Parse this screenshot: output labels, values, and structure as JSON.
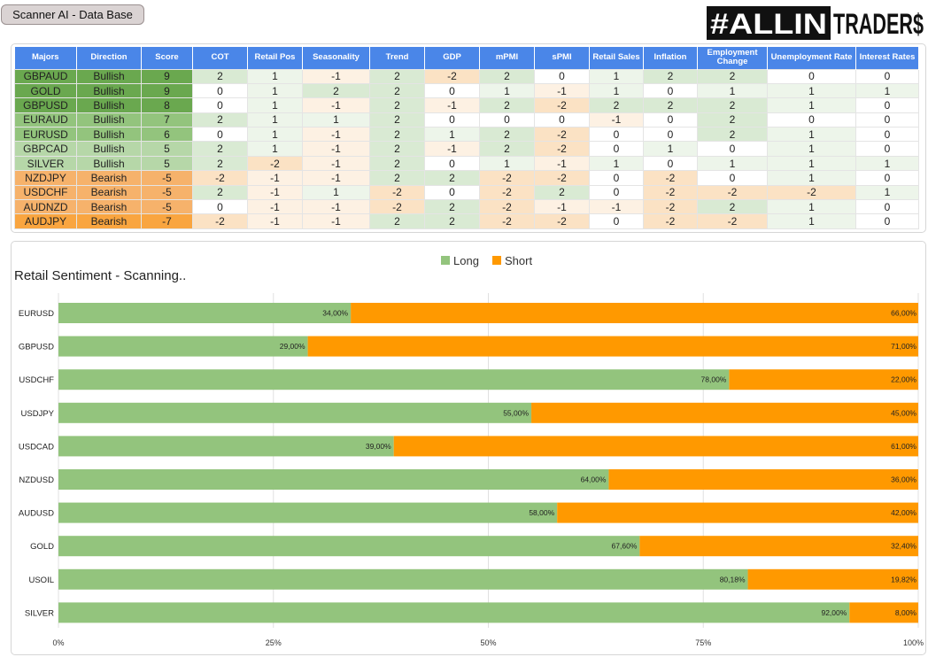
{
  "app": {
    "title": "Scanner AI - Data Base"
  },
  "logo": {
    "text": "#ALLINTRADER$"
  },
  "colors": {
    "header": "#4a86e8",
    "long": "#93c47d",
    "short": "#ff9900",
    "bullish_strong": "#6aa84f",
    "bullish_mid": "#93c47d",
    "bullish_light": "#b6d7a8",
    "bearish": "#f6b26b",
    "bearish_strong": "#f9a540",
    "pos2": "#d9ead3",
    "pos1": "#edf5ea",
    "neg1": "#fdf1e3",
    "neg2": "#fbe2c4"
  },
  "table": {
    "headers": [
      "Majors",
      "Direction",
      "Score",
      "COT",
      "Retail Pos",
      "Seasonality",
      "Trend",
      "GDP",
      "mPMI",
      "sPMI",
      "Retail Sales",
      "Inflation",
      "Employment Change",
      "Unemployment Rate",
      "Interest Rates"
    ],
    "rows": [
      [
        "GBPAUD",
        "Bullish",
        "9",
        "2",
        "1",
        "-1",
        "2",
        "-2",
        "2",
        "0",
        "1",
        "2",
        "2",
        "0",
        "0"
      ],
      [
        "GOLD",
        "Bullish",
        "9",
        "0",
        "1",
        "2",
        "2",
        "0",
        "1",
        "-1",
        "1",
        "0",
        "1",
        "1",
        "1"
      ],
      [
        "GBPUSD",
        "Bullish",
        "8",
        "0",
        "1",
        "-1",
        "2",
        "-1",
        "2",
        "-2",
        "2",
        "2",
        "2",
        "1",
        "0"
      ],
      [
        "EURAUD",
        "Bullish",
        "7",
        "2",
        "1",
        "1",
        "2",
        "0",
        "0",
        "0",
        "-1",
        "0",
        "2",
        "0",
        "0"
      ],
      [
        "EURUSD",
        "Bullish",
        "6",
        "0",
        "1",
        "-1",
        "2",
        "1",
        "2",
        "-2",
        "0",
        "0",
        "2",
        "1",
        "0"
      ],
      [
        "GBPCAD",
        "Bullish",
        "5",
        "2",
        "1",
        "-1",
        "2",
        "-1",
        "2",
        "-2",
        "0",
        "1",
        "0",
        "1",
        "0"
      ],
      [
        "SILVER",
        "Bullish",
        "5",
        "2",
        "-2",
        "-1",
        "2",
        "0",
        "1",
        "-1",
        "1",
        "0",
        "1",
        "1",
        "1"
      ],
      [
        "NZDJPY",
        "Bearish",
        "-5",
        "-2",
        "-1",
        "-1",
        "2",
        "2",
        "-2",
        "-2",
        "0",
        "-2",
        "0",
        "1",
        "0"
      ],
      [
        "USDCHF",
        "Bearish",
        "-5",
        "2",
        "-1",
        "1",
        "-2",
        "0",
        "-2",
        "2",
        "0",
        "-2",
        "-2",
        "-2",
        "1"
      ],
      [
        "AUDNZD",
        "Bearish",
        "-5",
        "0",
        "-1",
        "-1",
        "-2",
        "2",
        "-2",
        "-1",
        "-1",
        "-2",
        "2",
        "1",
        "0"
      ],
      [
        "AUDJPY",
        "Bearish",
        "-7",
        "-2",
        "-1",
        "-1",
        "2",
        "2",
        "-2",
        "-2",
        "0",
        "-2",
        "-2",
        "1",
        "0"
      ]
    ]
  },
  "chart_data": {
    "type": "bar",
    "stacked": true,
    "orientation": "horizontal",
    "title": "Retail Sentiment - Scanning..",
    "legend_position": "top",
    "categories": [
      "EURUSD",
      "GBPUSD",
      "USDCHF",
      "USDJPY",
      "USDCAD",
      "NZDUSD",
      "AUDUSD",
      "GOLD",
      "USOIL",
      "SILVER"
    ],
    "series": [
      {
        "name": "Long",
        "values": [
          34.0,
          29.0,
          78.0,
          55.0,
          39.0,
          64.0,
          58.0,
          67.6,
          80.18,
          92.0
        ],
        "labels": [
          "34,00%",
          "29,00%",
          "78,00%",
          "55,00%",
          "39,00%",
          "64,00%",
          "58,00%",
          "67,60%",
          "80,18%",
          "92,00%"
        ]
      },
      {
        "name": "Short",
        "values": [
          66.0,
          71.0,
          22.0,
          45.0,
          61.0,
          36.0,
          42.0,
          32.4,
          19.82,
          8.0
        ],
        "labels": [
          "66,00%",
          "71,00%",
          "22,00%",
          "45,00%",
          "61,00%",
          "36,00%",
          "42,00%",
          "32,40%",
          "19,82%",
          "8,00%"
        ]
      }
    ],
    "xlim": [
      0,
      100
    ],
    "xticks": [
      "0%",
      "25%",
      "50%",
      "75%",
      "100%"
    ],
    "grid": true
  }
}
